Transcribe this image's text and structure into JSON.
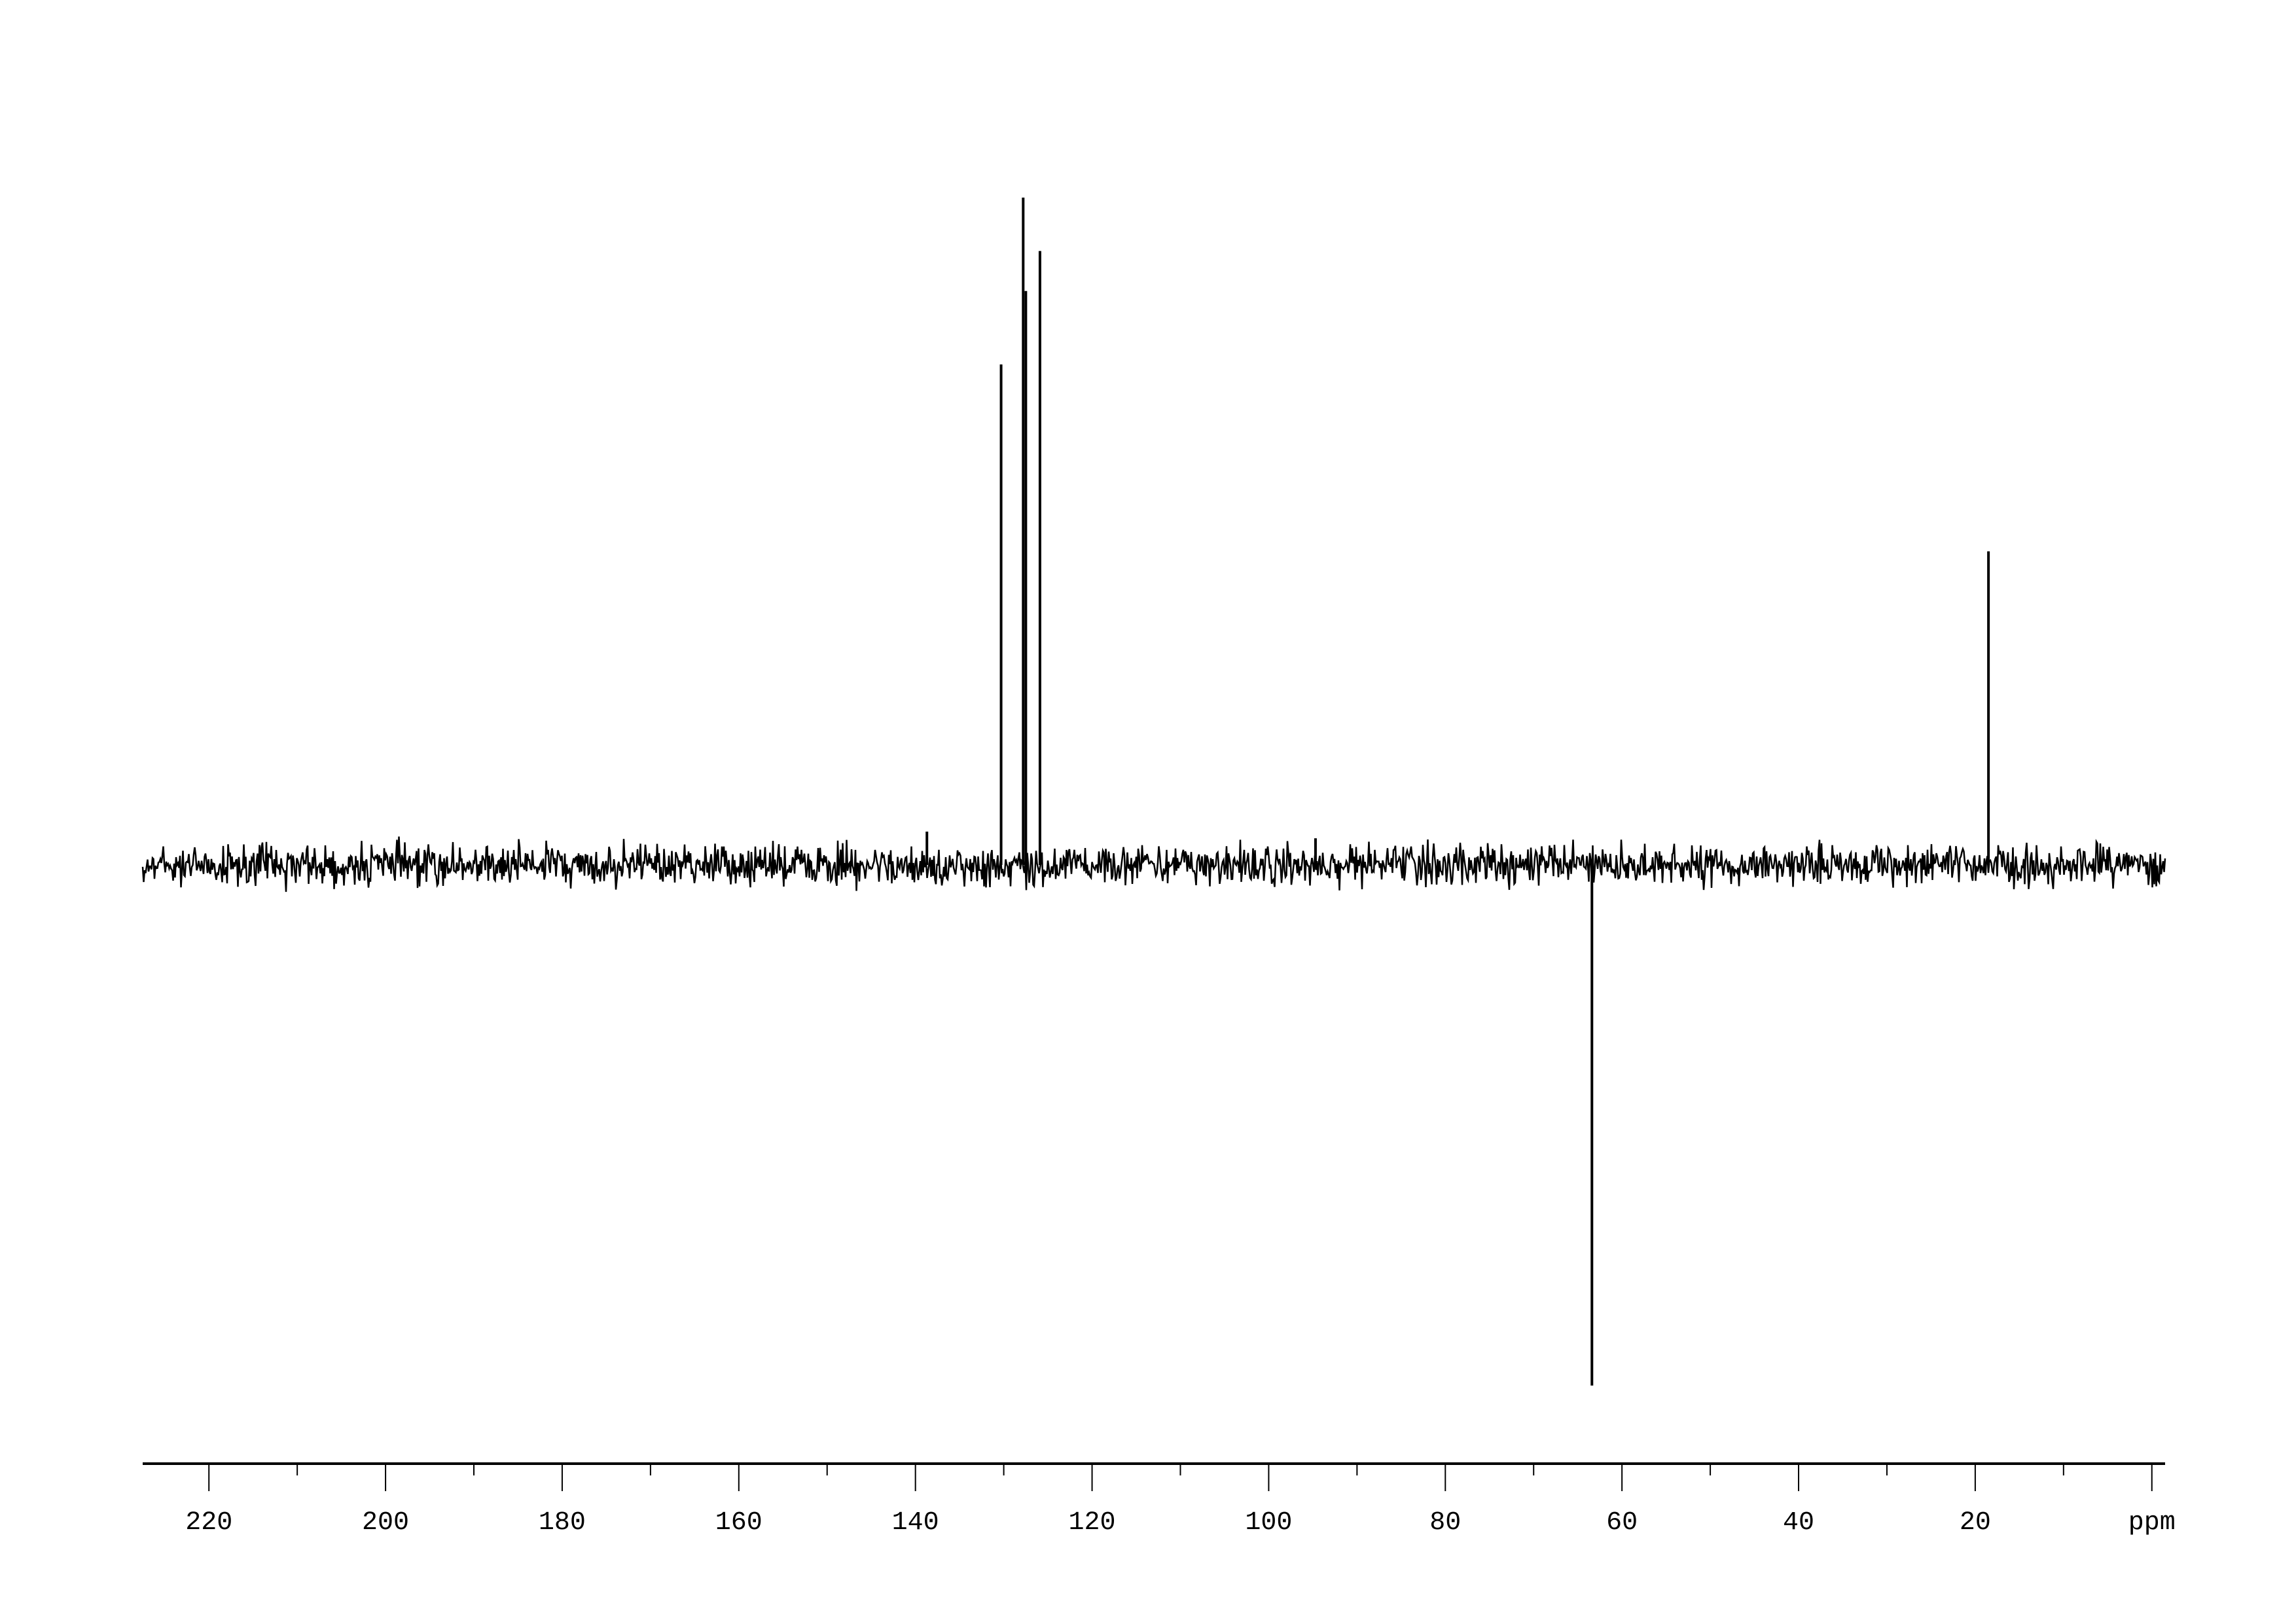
{
  "chart_data": {
    "type": "line",
    "title": "",
    "xlabel": "ppm",
    "ylabel": "",
    "x_reversed": true,
    "xlim": [
      227.5,
      -1.5
    ],
    "ylim": [
      -100,
      100
    ],
    "grid": false,
    "line_color": "#000000",
    "x_ticks_major": [
      220,
      200,
      180,
      160,
      140,
      120,
      100,
      80,
      60,
      40,
      20,
      0
    ],
    "x_tick_labels": [
      "220",
      "200",
      "180",
      "160",
      "140",
      "120",
      "100",
      "80",
      "60",
      "40",
      "20",
      "ppm"
    ],
    "x_ticks_minor_step": 10,
    "noise_level": 3,
    "peaks": [
      {
        "ppm": 130.3,
        "intensity": 75
      },
      {
        "ppm": 127.8,
        "intensity": 100
      },
      {
        "ppm": 127.5,
        "intensity": 86
      },
      {
        "ppm": 125.9,
        "intensity": 92
      },
      {
        "ppm": 138.7,
        "intensity": 5
      },
      {
        "ppm": 94.7,
        "intensity": 4
      },
      {
        "ppm": 63.4,
        "intensity": -78
      },
      {
        "ppm": 18.5,
        "intensity": 47
      }
    ]
  }
}
